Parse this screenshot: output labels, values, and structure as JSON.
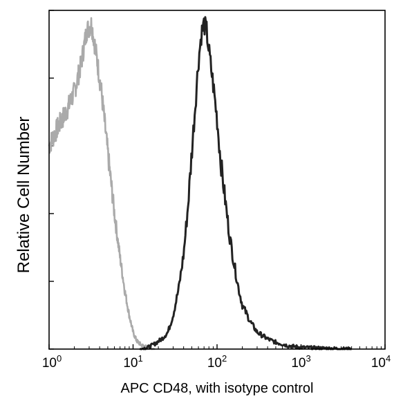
{
  "chart_data": {
    "type": "line",
    "title": "",
    "xlabel": "APC  CD48,  with isotype control",
    "ylabel": "Relative Cell Number",
    "x_scale": "log",
    "xlim": [
      1,
      10000
    ],
    "ylim": [
      0,
      100
    ],
    "x_ticks": [
      {
        "base": "10",
        "exp": "0",
        "value": 1
      },
      {
        "base": "10",
        "exp": "1",
        "value": 10
      },
      {
        "base": "10",
        "exp": "2",
        "value": 100
      },
      {
        "base": "10",
        "exp": "3",
        "value": 1000
      },
      {
        "base": "10",
        "exp": "4",
        "value": 10000
      }
    ],
    "y_ticks": [
      0,
      20,
      40,
      60,
      80,
      100
    ],
    "grid": false,
    "legend": "none",
    "series": [
      {
        "color": "#aaaaaa",
        "style": "isotype",
        "x": [
          1.0,
          1.3,
          1.6,
          2.0,
          2.4,
          2.8,
          3.2,
          3.6,
          4.2,
          5.0,
          6.0,
          7.0,
          8.0,
          9.0,
          10.0,
          11.0,
          12.5,
          15.0,
          18.0
        ],
        "y": [
          60,
          66,
          70,
          76,
          84,
          94,
          96,
          88,
          76,
          58,
          40,
          27,
          17,
          10,
          5,
          2.5,
          1.2,
          0.4,
          0
        ]
      },
      {
        "color": "#222222",
        "style": "cd48",
        "x": [
          12,
          15,
          18,
          22,
          26,
          30,
          35,
          40,
          45,
          50,
          55,
          60,
          65,
          70,
          75,
          80,
          90,
          100,
          110,
          125,
          140,
          160,
          180,
          200,
          250,
          300,
          400,
          500,
          700,
          1000,
          2000,
          4000
        ],
        "y": [
          0,
          0.5,
          1.5,
          3,
          5,
          10,
          18,
          28,
          42,
          58,
          72,
          85,
          93,
          96,
          94,
          88,
          78,
          68,
          56,
          44,
          34,
          25,
          18,
          13,
          8,
          5,
          3,
          2,
          1,
          0.5,
          0.2,
          0
        ]
      }
    ]
  }
}
